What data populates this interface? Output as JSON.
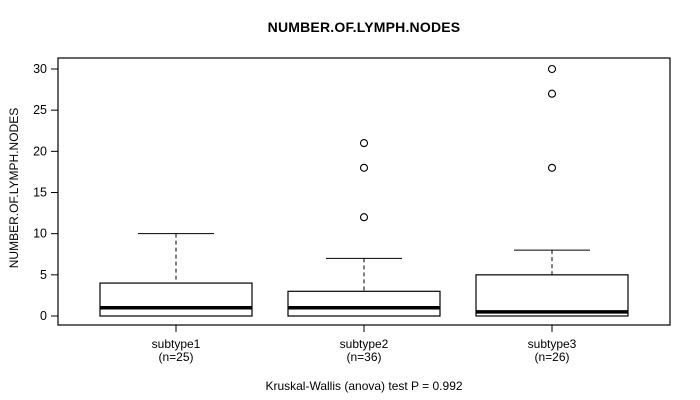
{
  "title": "NUMBER.OF.LYMPH.NODES",
  "caption": "Kruskal-Wallis (anova) test P = 0.992",
  "colors": {
    "foreground": "#000000",
    "background": "#ffffff",
    "box_fill": "#ffffff"
  },
  "chart_data": {
    "type": "boxplot",
    "title": "NUMBER.OF.LYMPH.NODES",
    "xlabel": "",
    "ylabel": "NUMBER.OF.LYMPH.NODES",
    "caption": "Kruskal-Wallis (anova) test P = 0.992",
    "ylim": [
      0,
      31
    ],
    "yticks": [
      0,
      5,
      10,
      15,
      20,
      25,
      30
    ],
    "grid": false,
    "legend": "none",
    "groups": [
      {
        "label": "subtype1",
        "n_label": "(n=25)",
        "n": 25,
        "whisker_low": 0,
        "q1": 0,
        "median": 1,
        "q3": 4,
        "whisker_high": 10,
        "outliers": []
      },
      {
        "label": "subtype2",
        "n_label": "(n=36)",
        "n": 36,
        "whisker_low": 0,
        "q1": 0,
        "median": 1,
        "q3": 3,
        "whisker_high": 7,
        "outliers": [
          12,
          18,
          21
        ]
      },
      {
        "label": "subtype3",
        "n_label": "(n=26)",
        "n": 26,
        "whisker_low": 0,
        "q1": 0,
        "median": 0.5,
        "q3": 5,
        "whisker_high": 8,
        "outliers": [
          18,
          27,
          30
        ]
      }
    ]
  }
}
